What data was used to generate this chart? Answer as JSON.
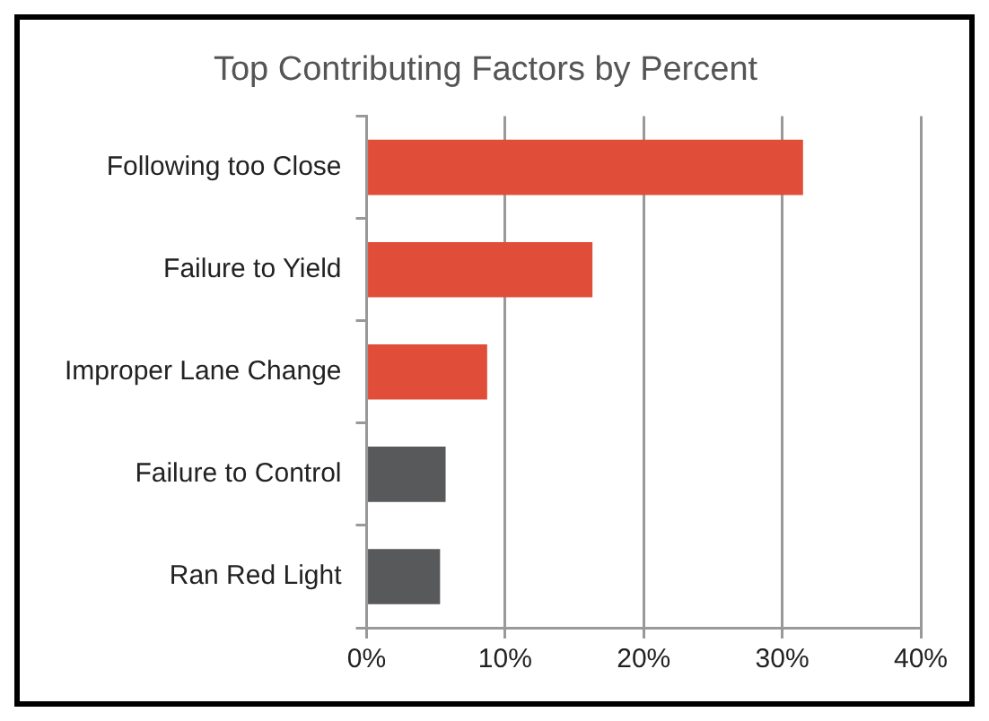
{
  "chart_data": {
    "type": "bar",
    "orientation": "horizontal",
    "title": "Top Contributing Factors by Percent",
    "categories": [
      "Following too Close",
      "Failure to Yield",
      "Improper Lane Change",
      "Failure to Control",
      "Ran Red Light"
    ],
    "values": [
      31.5,
      16.3,
      8.7,
      5.7,
      5.3
    ],
    "colors": [
      "#e04e39",
      "#e04e39",
      "#e04e39",
      "#58595b",
      "#58595b"
    ],
    "xlim": [
      0,
      40
    ],
    "xticks": [
      {
        "value": 0,
        "label": "0%"
      },
      {
        "value": 10,
        "label": "10%"
      },
      {
        "value": 20,
        "label": "20%"
      },
      {
        "value": 30,
        "label": "30%"
      },
      {
        "value": 40,
        "label": "40%"
      }
    ],
    "grid": "x",
    "legend": false
  }
}
